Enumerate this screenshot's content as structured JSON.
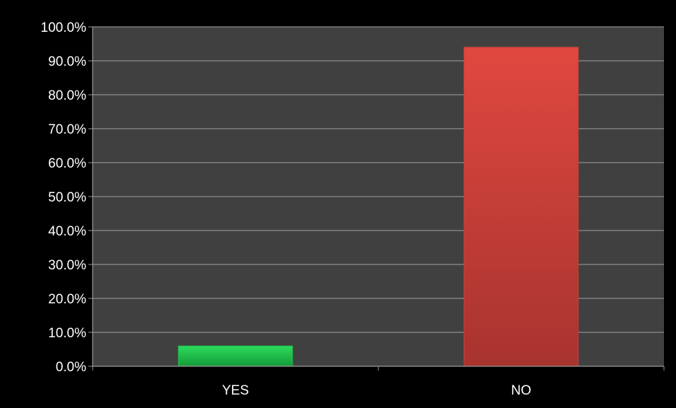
{
  "chart_data": {
    "type": "bar",
    "title": "",
    "xlabel": "",
    "ylabel": "",
    "categories": [
      "YES",
      "NO"
    ],
    "values": [
      6.0,
      94.0
    ],
    "bar_colors": [
      "#1fb548",
      "#c9403a"
    ],
    "ylim": [
      0,
      100
    ],
    "yticks": [
      0,
      10,
      20,
      30,
      40,
      50,
      60,
      70,
      80,
      90,
      100
    ],
    "ytick_labels": [
      "0.0%",
      "10.0%",
      "20.0%",
      "30.0%",
      "40.0%",
      "50.0%",
      "60.0%",
      "70.0%",
      "80.0%",
      "90.0%",
      "100.0%"
    ],
    "grid": true,
    "legend": "none",
    "plot_background": "#404040",
    "page_background": "#000000",
    "gridline_color": "#8c8c8c"
  }
}
